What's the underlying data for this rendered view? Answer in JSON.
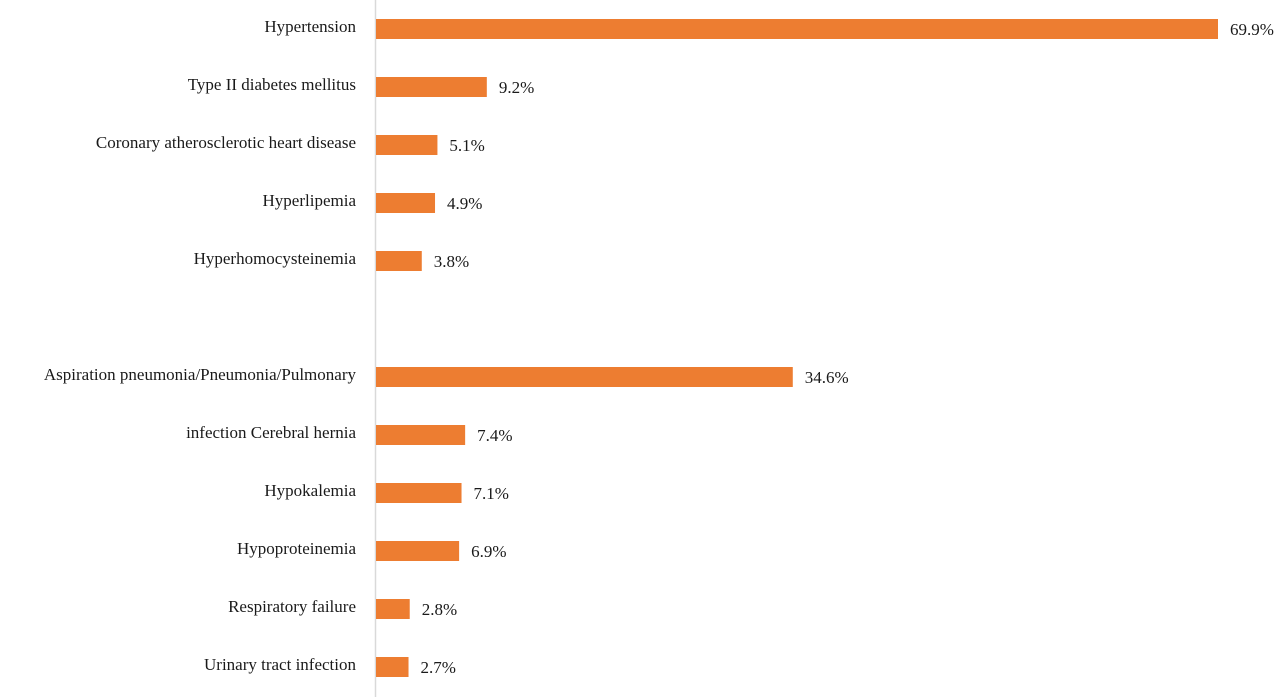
{
  "chart_data": {
    "type": "bar",
    "orientation": "horizontal",
    "categories": [
      "Hypertension",
      "Type II diabetes mellitus",
      "Coronary atherosclerotic heart disease",
      "Hyperlipemia",
      "Hyperhomocysteinemia",
      "",
      "Aspiration pneumonia/Pneumonia/Pulmonary",
      "infection Cerebral hernia",
      "Hypokalemia",
      "Hypoproteinemia",
      "Respiratory failure",
      "Urinary tract infection"
    ],
    "values": [
      69.9,
      9.2,
      5.1,
      4.9,
      3.8,
      null,
      34.6,
      7.4,
      7.1,
      6.9,
      2.8,
      2.7
    ],
    "value_labels": [
      "69.9%",
      "9.2%",
      "5.1%",
      "4.9%",
      "3.8%",
      "",
      "34.6%",
      "7.4%",
      "7.1%",
      "6.9%",
      "2.8%",
      "2.7%"
    ],
    "title": "",
    "xlabel": "",
    "ylabel": "",
    "xlim": [
      0,
      70
    ],
    "grid": false,
    "legend": "none",
    "colors": {
      "bar": "#ED7D31",
      "axis": "#D9D9D9",
      "text": "#1a1a1a"
    }
  }
}
